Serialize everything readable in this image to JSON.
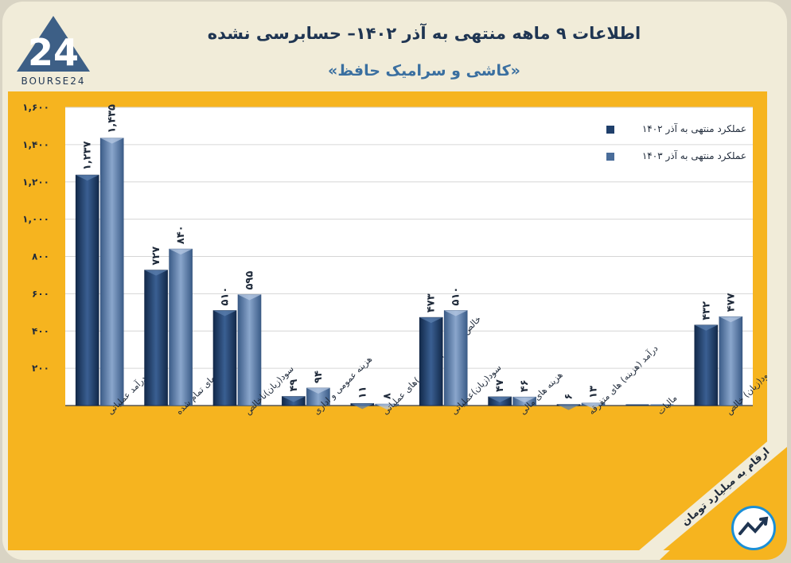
{
  "brand": {
    "logo_text": "BOURSE24",
    "logo_number": "24"
  },
  "header": {
    "title": "اطلاعات ۹ ماهه منتهی به آذر ۱۴۰۲– حسابرسی نشده",
    "subtitle": "«کاشی و سرامیک حافظ»"
  },
  "note": "ارقام به میلیارد تومان",
  "colors": {
    "series1": "#1f3f6b",
    "series2": "#4a6d9a",
    "panel": "#f6b41f",
    "plot": "#ffffff"
  },
  "chart_data": {
    "type": "bar",
    "title": "اطلاعات ۹ ماهه منتهی به آذر ۱۴۰۲– حسابرسی نشده",
    "xlabel": "",
    "ylabel": "",
    "ylim": [
      0,
      1600
    ],
    "yticks": [
      200,
      400,
      600,
      800,
      1000,
      1200,
      1400,
      1600
    ],
    "ytick_labels": [
      "۲۰۰",
      "۴۰۰",
      "۶۰۰",
      "۸۰۰",
      "۱,۰۰۰",
      "۱,۲۰۰",
      "۱,۴۰۰",
      "۱,۶۰۰"
    ],
    "grid": true,
    "legend_position": "top-right",
    "categories": [
      "درآمد عملیاتی",
      "بهای تمام شده",
      "سود(زیان)ناخالص",
      "هزینه عمومی و اداری",
      "خالص سایر درآمد(هزینه)های عملیاتی",
      "سود(زیان)عملیاتی",
      "هزینه های مالی",
      "درآمد (هزینه) های متفرقه",
      "مالیات",
      "سود(زیان) خالص"
    ],
    "series": [
      {
        "name": "عملکرد منتهی به آذر ۱۴۰۲",
        "values": [
          1237,
          727,
          510,
          49,
          11,
          473,
          47,
          6,
          0,
          432
        ],
        "labels": [
          "۱,۲۳۷",
          "۷۲۷",
          "۵۱۰",
          "۴۹",
          "۱۱",
          "۴۷۳",
          "۴۷",
          "۶",
          "",
          "۴۳۲"
        ]
      },
      {
        "name": "عملکرد منتهی به آذر ۱۴۰۳",
        "values": [
          1435,
          840,
          595,
          94,
          8,
          510,
          46,
          13,
          0,
          477
        ],
        "labels": [
          "۱,۴۳۵",
          "۸۴۰",
          "۵۹۵",
          "۹۴",
          "۸",
          "۵۱۰",
          "۴۶",
          "۱۳",
          "",
          "۴۷۷"
        ]
      }
    ]
  }
}
